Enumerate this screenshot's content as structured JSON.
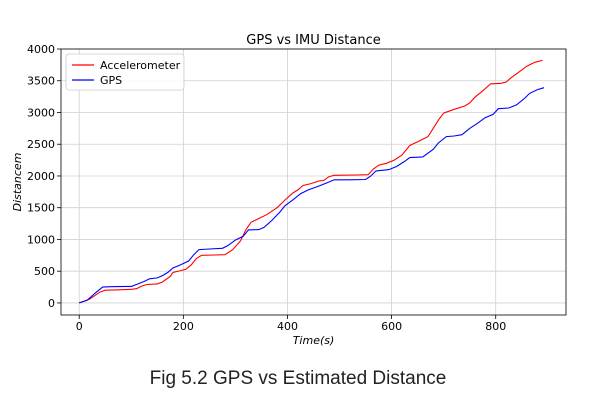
{
  "chart_data": {
    "type": "line",
    "title": "GPS vs IMU Distance",
    "xlabel": "Time(s)",
    "ylabel": "Distancem",
    "xlim": [
      -35,
      935
    ],
    "ylim": [
      -190,
      4000
    ],
    "xticks": [
      0,
      200,
      400,
      600,
      800
    ],
    "yticks": [
      0,
      500,
      1000,
      1500,
      2000,
      2500,
      3000,
      3500,
      4000
    ],
    "grid": true,
    "legend_position": "top-left",
    "series": [
      {
        "name": "Accelerometer",
        "color": "#ff0000",
        "points": [
          [
            0,
            0
          ],
          [
            20,
            60
          ],
          [
            40,
            170
          ],
          [
            50,
            200
          ],
          [
            70,
            205
          ],
          [
            100,
            215
          ],
          [
            110,
            225
          ],
          [
            120,
            265
          ],
          [
            130,
            290
          ],
          [
            150,
            300
          ],
          [
            160,
            330
          ],
          [
            175,
            420
          ],
          [
            180,
            480
          ],
          [
            195,
            510
          ],
          [
            205,
            530
          ],
          [
            215,
            600
          ],
          [
            225,
            700
          ],
          [
            235,
            750
          ],
          [
            260,
            755
          ],
          [
            280,
            760
          ],
          [
            295,
            840
          ],
          [
            310,
            980
          ],
          [
            320,
            1150
          ],
          [
            330,
            1270
          ],
          [
            345,
            1330
          ],
          [
            360,
            1390
          ],
          [
            380,
            1500
          ],
          [
            395,
            1620
          ],
          [
            410,
            1730
          ],
          [
            420,
            1780
          ],
          [
            430,
            1850
          ],
          [
            445,
            1880
          ],
          [
            460,
            1920
          ],
          [
            470,
            1930
          ],
          [
            480,
            1990
          ],
          [
            490,
            2010
          ],
          [
            530,
            2015
          ],
          [
            555,
            2020
          ],
          [
            565,
            2110
          ],
          [
            575,
            2170
          ],
          [
            590,
            2200
          ],
          [
            605,
            2250
          ],
          [
            620,
            2330
          ],
          [
            635,
            2480
          ],
          [
            650,
            2540
          ],
          [
            670,
            2620
          ],
          [
            690,
            2880
          ],
          [
            700,
            2990
          ],
          [
            720,
            3050
          ],
          [
            740,
            3100
          ],
          [
            750,
            3150
          ],
          [
            760,
            3240
          ],
          [
            775,
            3340
          ],
          [
            790,
            3450
          ],
          [
            810,
            3460
          ],
          [
            820,
            3480
          ],
          [
            830,
            3550
          ],
          [
            845,
            3640
          ],
          [
            860,
            3730
          ],
          [
            875,
            3790
          ],
          [
            890,
            3820
          ]
        ]
      },
      {
        "name": "GPS",
        "color": "#0000ff",
        "points": [
          [
            0,
            0
          ],
          [
            15,
            40
          ],
          [
            30,
            150
          ],
          [
            45,
            250
          ],
          [
            60,
            255
          ],
          [
            100,
            260
          ],
          [
            110,
            290
          ],
          [
            125,
            340
          ],
          [
            135,
            380
          ],
          [
            150,
            395
          ],
          [
            160,
            430
          ],
          [
            170,
            480
          ],
          [
            180,
            550
          ],
          [
            195,
            600
          ],
          [
            210,
            660
          ],
          [
            220,
            760
          ],
          [
            230,
            840
          ],
          [
            250,
            850
          ],
          [
            275,
            860
          ],
          [
            285,
            900
          ],
          [
            300,
            990
          ],
          [
            315,
            1050
          ],
          [
            325,
            1150
          ],
          [
            345,
            1155
          ],
          [
            355,
            1190
          ],
          [
            370,
            1300
          ],
          [
            385,
            1430
          ],
          [
            395,
            1530
          ],
          [
            410,
            1620
          ],
          [
            425,
            1720
          ],
          [
            440,
            1780
          ],
          [
            460,
            1840
          ],
          [
            475,
            1890
          ],
          [
            490,
            1940
          ],
          [
            520,
            1940
          ],
          [
            550,
            1945
          ],
          [
            560,
            2000
          ],
          [
            570,
            2080
          ],
          [
            595,
            2100
          ],
          [
            610,
            2150
          ],
          [
            625,
            2230
          ],
          [
            635,
            2290
          ],
          [
            660,
            2300
          ],
          [
            680,
            2420
          ],
          [
            690,
            2520
          ],
          [
            705,
            2620
          ],
          [
            720,
            2630
          ],
          [
            735,
            2650
          ],
          [
            750,
            2750
          ],
          [
            765,
            2830
          ],
          [
            780,
            2920
          ],
          [
            795,
            2970
          ],
          [
            805,
            3060
          ],
          [
            825,
            3070
          ],
          [
            840,
            3120
          ],
          [
            855,
            3220
          ],
          [
            865,
            3300
          ],
          [
            880,
            3360
          ],
          [
            893,
            3390
          ]
        ]
      }
    ]
  },
  "caption": "Fig 5.2 GPS vs Estimated Distance"
}
